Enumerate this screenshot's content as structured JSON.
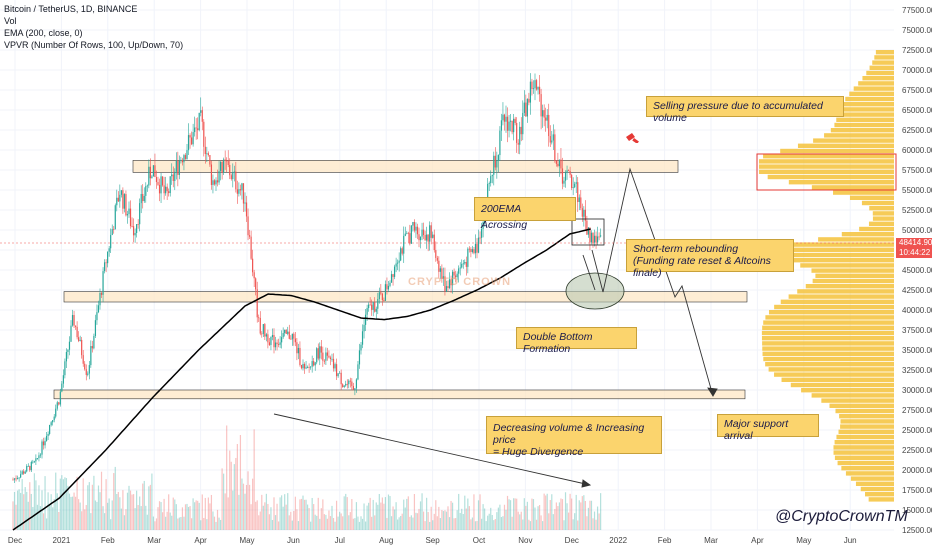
{
  "legend": {
    "symbol": "Bitcoin / TetherUS, 1D, BINANCE",
    "vol": "Vol",
    "ema": "EMA (200, close, 0)",
    "vpvr": "VPVR (Number Of Rows, 100, Up/Down, 70)"
  },
  "price_tag": {
    "price": "48414.90",
    "timer": "10:44:22"
  },
  "annotations": {
    "selling": "Selling pressure due to accumulated volume",
    "ema_crossing": "200EMA Acrossing",
    "rebound_line1": "Short-term rebounding",
    "rebound_line2": "(Funding rate reset & Altcoins finale)",
    "double_bottom": "Double Bottom Formation",
    "divergence_line1": "Decreasing volume & Increasing price",
    "divergence_line2": "= Huge Divergence",
    "support": "Major support arrival",
    "watermark_center": "CRYPTO CROWN",
    "handle": "@CryptoCrownTM"
  },
  "colors": {
    "up": "#26a69a",
    "down": "#ef5350",
    "ema": "#000000",
    "zone_fill": "#fde7c6",
    "vpvr": "#f5c23a",
    "callout": "#fbd46d",
    "price_tag": "#ef5350"
  },
  "chart_data": {
    "type": "candlestick",
    "title": "Bitcoin / TetherUS, 1D, BINANCE",
    "x_ticks": [
      "Dec",
      "2021",
      "Feb",
      "Mar",
      "Apr",
      "May",
      "Jun",
      "Jul",
      "Aug",
      "Sep",
      "Oct",
      "Nov",
      "Dec",
      "2022",
      "Feb",
      "Mar",
      "Apr",
      "May",
      "Jun"
    ],
    "y_ticks": [
      12500,
      15000,
      17500,
      20000,
      22500,
      25000,
      27500,
      30000,
      32500,
      35000,
      37500,
      40000,
      42500,
      45000,
      47500,
      50000,
      52500,
      55000,
      57500,
      60000,
      62500,
      65000,
      67500,
      70000,
      72500,
      75000,
      77500
    ],
    "ylim": [
      12000,
      78500
    ],
    "last_price": 48414.9,
    "price_path": {
      "months": [
        0,
        0.5,
        1,
        1.3,
        1.6,
        2,
        2.3,
        2.6,
        3,
        3.3,
        3.6,
        4.05,
        4.3,
        4.6,
        5,
        5.3,
        5.6,
        6,
        6.3,
        6.6,
        6.9,
        7.1,
        7.35,
        7.6,
        8,
        8.3,
        8.6,
        9,
        9.3,
        9.6,
        10,
        10.3,
        10.6,
        10.9,
        11.2,
        11.5,
        11.8,
        12.1,
        12.4,
        12.7
      ],
      "close": [
        18800,
        21000,
        29000,
        39000,
        32000,
        46000,
        55000,
        50000,
        58000,
        54000,
        59000,
        63500,
        56000,
        58000,
        54000,
        38000,
        36000,
        37000,
        32000,
        35000,
        33000,
        31000,
        30000,
        39500,
        42000,
        47000,
        50000,
        49500,
        43000,
        45000,
        48000,
        57000,
        64000,
        62000,
        68500,
        64000,
        57000,
        56000,
        49500,
        48400
      ]
    },
    "ema200": {
      "months": [
        0,
        1,
        2,
        3,
        4,
        5,
        5.5,
        6,
        6.5,
        7,
        7.5,
        8,
        8.5,
        9,
        9.5,
        10,
        10.5,
        11,
        11.5,
        12,
        12.5
      ],
      "values": [
        12500,
        16500,
        22500,
        29000,
        35000,
        40500,
        42000,
        41800,
        41000,
        40000,
        39000,
        38800,
        39200,
        40000,
        41200,
        42500,
        44000,
        45800,
        47500,
        49500,
        50200
      ]
    },
    "zones": [
      {
        "low": 57200,
        "high": 58700
      },
      {
        "low": 41000,
        "high": 42300
      },
      {
        "low": 28900,
        "high": 30000
      }
    ]
  }
}
